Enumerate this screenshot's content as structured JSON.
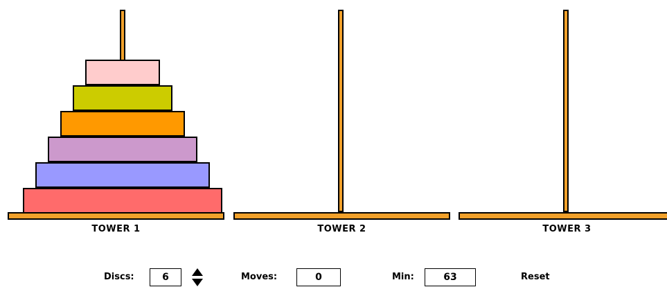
{
  "towers": [
    {
      "label": "TOWER 1",
      "discs": [
        {
          "size": 6,
          "color": "#ff6b6b"
        },
        {
          "size": 5,
          "color": "#9999ff"
        },
        {
          "size": 4,
          "color": "#cc99cc"
        },
        {
          "size": 3,
          "color": "#ff9900"
        },
        {
          "size": 2,
          "color": "#cccc00"
        },
        {
          "size": 1,
          "color": "#ffcccc"
        }
      ]
    },
    {
      "label": "TOWER 2",
      "discs": []
    },
    {
      "label": "TOWER 3",
      "discs": []
    }
  ],
  "controls": {
    "discs_label": "Discs:",
    "discs_value": "6",
    "moves_label": "Moves:",
    "moves_value": "0",
    "min_label": "Min:",
    "min_value": "63",
    "reset_label": "Reset"
  },
  "colors": {
    "peg": "#f1a12b",
    "outline": "#000000"
  },
  "icons": {
    "stepper_up": "triangle-up-icon",
    "stepper_down": "triangle-down-icon"
  }
}
